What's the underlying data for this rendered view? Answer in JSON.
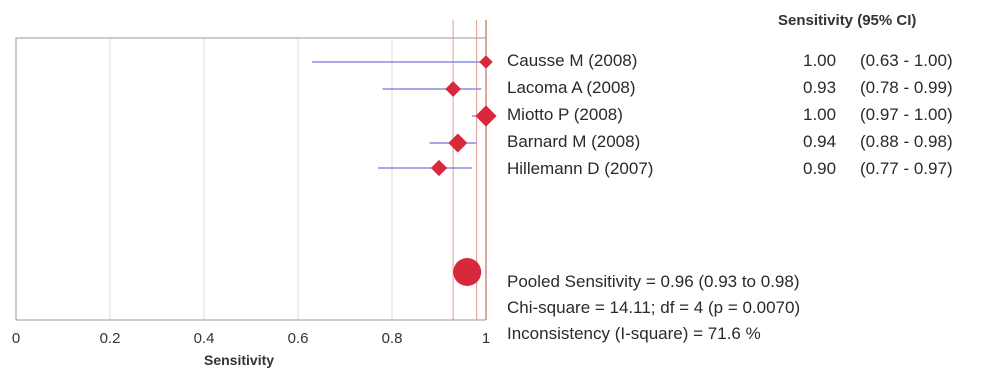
{
  "chart_data": {
    "type": "forest",
    "header": "Sensitivity (95% CI)",
    "xlabel": "Sensitivity",
    "xlim": [
      0,
      1
    ],
    "ticks": [
      "0",
      "0.2",
      "0.4",
      "0.6",
      "0.8",
      "1"
    ],
    "tick_values": [
      0,
      0.2,
      0.4,
      0.6,
      0.8,
      1
    ],
    "studies": [
      {
        "label": "Causse M (2008)",
        "value": 1.0,
        "lower": 0.63,
        "upper": 1.0,
        "value_text": "1.00",
        "ci_text": "(0.63 - 1.00)",
        "weight": 0.5
      },
      {
        "label": "Lacoma A  (2008)",
        "value": 0.93,
        "lower": 0.78,
        "upper": 0.99,
        "value_text": "0.93",
        "ci_text": "(0.78 - 0.99)",
        "weight": 0.7
      },
      {
        "label": "Miotto P (2008)",
        "value": 1.0,
        "lower": 0.97,
        "upper": 1.0,
        "value_text": "1.00",
        "ci_text": "(0.97 - 1.00)",
        "weight": 1.2
      },
      {
        "label": "Barnard M (2008)",
        "value": 0.94,
        "lower": 0.88,
        "upper": 0.98,
        "value_text": "0.94",
        "ci_text": "(0.88 - 0.98)",
        "weight": 1.0
      },
      {
        "label": "Hillemann D (2007)",
        "value": 0.9,
        "lower": 0.77,
        "upper": 0.97,
        "value_text": "0.90",
        "ci_text": "(0.77 - 0.97)",
        "weight": 0.75
      }
    ],
    "pooled": {
      "value": 0.96,
      "lower": 0.93,
      "upper": 0.98
    },
    "stats": [
      "Pooled Sensitivity = 0.96 (0.93 to 0.98)",
      "Chi-square = 14.11; df =  4 (p = 0.0070)",
      "Inconsistency (I-square) = 71.6 %"
    ],
    "colors": {
      "marker": "#d8283c",
      "ci_line": "#8c8ce6",
      "ref_line": "#e69a8c",
      "frame": "#999999",
      "grid": "#dedede"
    }
  }
}
